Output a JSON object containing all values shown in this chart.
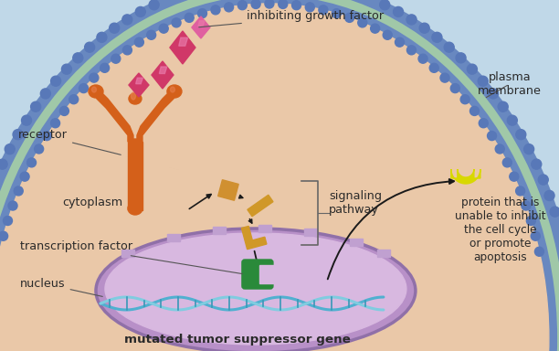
{
  "bg_sky": "#c0d8e8",
  "bg_cell": "#eac8a8",
  "bg_nucleus_outer": "#c8a0d0",
  "bg_nucleus_inner": "#d8b8e0",
  "membrane_green": "#a0c8a8",
  "membrane_blue": "#6888c0",
  "labels": {
    "inhibiting_growth_factor": "inhibiting growth factor",
    "receptor": "receptor",
    "plasma_membrane": "plasma\nmembrane",
    "cytoplasm": "cytoplasm",
    "signaling_pathway": "signaling\npathway",
    "transcription_factor": "transcription factor",
    "nucleus": "nucleus",
    "mutated_gene": "mutated tumor suppressor gene",
    "protein_label": "protein that is\nunable to inhibit\nthe cell cycle\nor promote\napoptosis"
  },
  "colors": {
    "receptor_body": "#d4601a",
    "receptor_highlight": "#e88050",
    "diamond_pink": "#d03868",
    "diamond_highlight": "#e870a0",
    "signaling_sq": "#d09030",
    "signaling_bar": "#d09828",
    "signaling_L": "#d09828",
    "mutated_gene_color": "#2a8a3a",
    "protein_shape": "#d8d800",
    "text_color": "#2a2a2a",
    "arrow_color": "#1a1a1a",
    "nucleus_pore": "#b090c0"
  }
}
